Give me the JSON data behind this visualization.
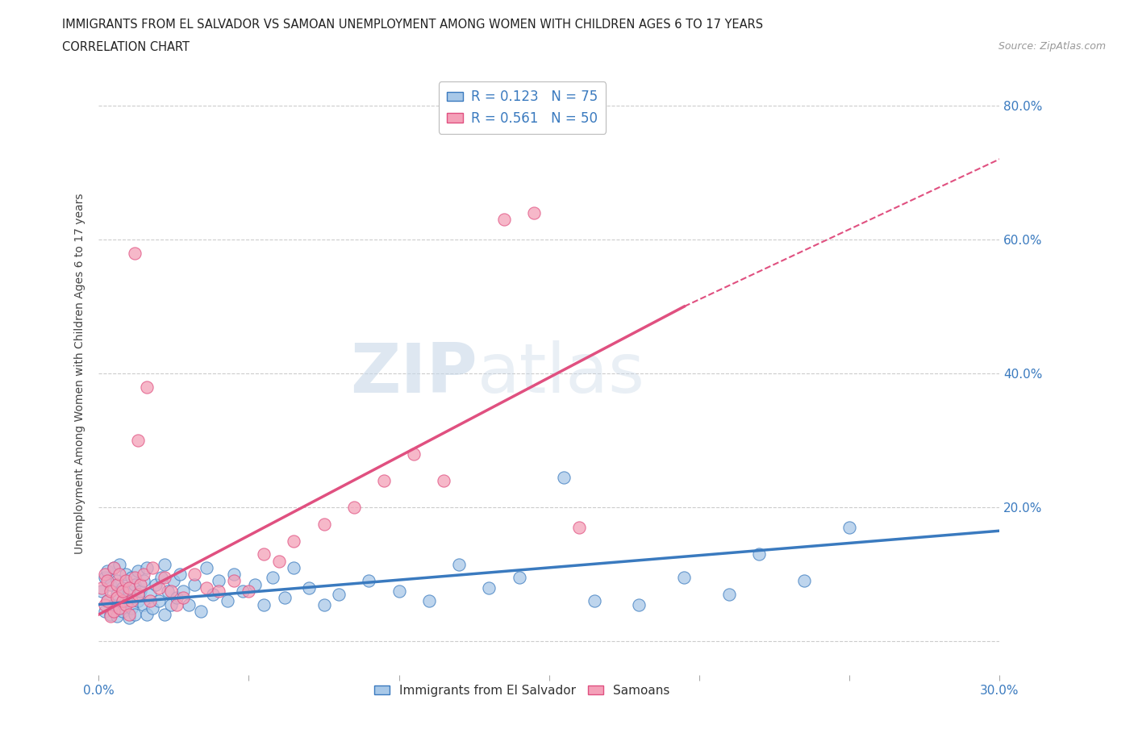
{
  "title_line1": "IMMIGRANTS FROM EL SALVADOR VS SAMOAN UNEMPLOYMENT AMONG WOMEN WITH CHILDREN AGES 6 TO 17 YEARS",
  "title_line2": "CORRELATION CHART",
  "source_text": "Source: ZipAtlas.com",
  "ylabel": "Unemployment Among Women with Children Ages 6 to 17 years",
  "xlim": [
    0.0,
    0.3
  ],
  "ylim": [
    -0.05,
    0.85
  ],
  "xticks": [
    0.0,
    0.05,
    0.1,
    0.15,
    0.2,
    0.25,
    0.3
  ],
  "xticklabels": [
    "0.0%",
    "",
    "",
    "",
    "",
    "",
    "30.0%"
  ],
  "yticks_right": [
    0.0,
    0.2,
    0.4,
    0.6,
    0.8
  ],
  "yticklabels_right": [
    "",
    "20.0%",
    "40.0%",
    "60.0%",
    "80.0%"
  ],
  "grid_color": "#cccccc",
  "background_color": "#ffffff",
  "watermark_zip": "ZIP",
  "watermark_atlas": "atlas",
  "legend_R1": "R = 0.123",
  "legend_N1": "N = 75",
  "legend_R2": "R = 0.561",
  "legend_N2": "N = 50",
  "color_blue": "#a8c8e8",
  "color_pink": "#f4a0b8",
  "color_blue_line": "#3a7abf",
  "color_pink_line": "#e05080",
  "blue_line_x0": 0.0,
  "blue_line_y0": 0.055,
  "blue_line_x1": 0.3,
  "blue_line_y1": 0.165,
  "pink_line_x0": 0.0,
  "pink_line_y0": 0.04,
  "pink_line_xsolid": 0.195,
  "pink_line_ysolid": 0.5,
  "pink_line_x1": 0.3,
  "pink_line_y1": 0.72,
  "blue_scatter_x": [
    0.001,
    0.002,
    0.002,
    0.003,
    0.003,
    0.004,
    0.004,
    0.005,
    0.005,
    0.006,
    0.006,
    0.006,
    0.007,
    0.007,
    0.008,
    0.008,
    0.009,
    0.009,
    0.01,
    0.01,
    0.011,
    0.011,
    0.012,
    0.012,
    0.013,
    0.013,
    0.014,
    0.015,
    0.015,
    0.016,
    0.016,
    0.017,
    0.018,
    0.019,
    0.02,
    0.021,
    0.022,
    0.022,
    0.023,
    0.024,
    0.025,
    0.026,
    0.027,
    0.028,
    0.03,
    0.032,
    0.034,
    0.036,
    0.038,
    0.04,
    0.043,
    0.045,
    0.048,
    0.052,
    0.055,
    0.058,
    0.062,
    0.065,
    0.07,
    0.075,
    0.08,
    0.09,
    0.1,
    0.11,
    0.12,
    0.13,
    0.14,
    0.155,
    0.165,
    0.18,
    0.195,
    0.21,
    0.22,
    0.235,
    0.25
  ],
  "blue_scatter_y": [
    0.075,
    0.045,
    0.095,
    0.06,
    0.105,
    0.04,
    0.085,
    0.055,
    0.11,
    0.038,
    0.07,
    0.09,
    0.05,
    0.115,
    0.045,
    0.08,
    0.06,
    0.1,
    0.035,
    0.075,
    0.05,
    0.095,
    0.04,
    0.085,
    0.06,
    0.105,
    0.075,
    0.055,
    0.09,
    0.04,
    0.11,
    0.07,
    0.05,
    0.085,
    0.06,
    0.095,
    0.04,
    0.115,
    0.075,
    0.055,
    0.09,
    0.065,
    0.1,
    0.075,
    0.055,
    0.085,
    0.045,
    0.11,
    0.07,
    0.09,
    0.06,
    0.1,
    0.075,
    0.085,
    0.055,
    0.095,
    0.065,
    0.11,
    0.08,
    0.055,
    0.07,
    0.09,
    0.075,
    0.06,
    0.115,
    0.08,
    0.095,
    0.245,
    0.06,
    0.055,
    0.095,
    0.07,
    0.13,
    0.09,
    0.17
  ],
  "pink_scatter_x": [
    0.001,
    0.002,
    0.002,
    0.003,
    0.003,
    0.004,
    0.004,
    0.005,
    0.005,
    0.006,
    0.006,
    0.007,
    0.007,
    0.008,
    0.008,
    0.009,
    0.009,
    0.01,
    0.01,
    0.011,
    0.012,
    0.012,
    0.013,
    0.013,
    0.014,
    0.015,
    0.016,
    0.017,
    0.018,
    0.02,
    0.022,
    0.024,
    0.026,
    0.028,
    0.032,
    0.036,
    0.04,
    0.045,
    0.05,
    0.055,
    0.06,
    0.065,
    0.075,
    0.085,
    0.095,
    0.105,
    0.115,
    0.135,
    0.145,
    0.16
  ],
  "pink_scatter_y": [
    0.08,
    0.055,
    0.1,
    0.06,
    0.09,
    0.038,
    0.075,
    0.045,
    0.11,
    0.065,
    0.085,
    0.05,
    0.1,
    0.06,
    0.075,
    0.055,
    0.09,
    0.04,
    0.08,
    0.06,
    0.58,
    0.095,
    0.3,
    0.07,
    0.085,
    0.1,
    0.38,
    0.06,
    0.11,
    0.08,
    0.095,
    0.075,
    0.055,
    0.065,
    0.1,
    0.08,
    0.075,
    0.09,
    0.075,
    0.13,
    0.12,
    0.15,
    0.175,
    0.2,
    0.24,
    0.28,
    0.24,
    0.63,
    0.64,
    0.17
  ]
}
